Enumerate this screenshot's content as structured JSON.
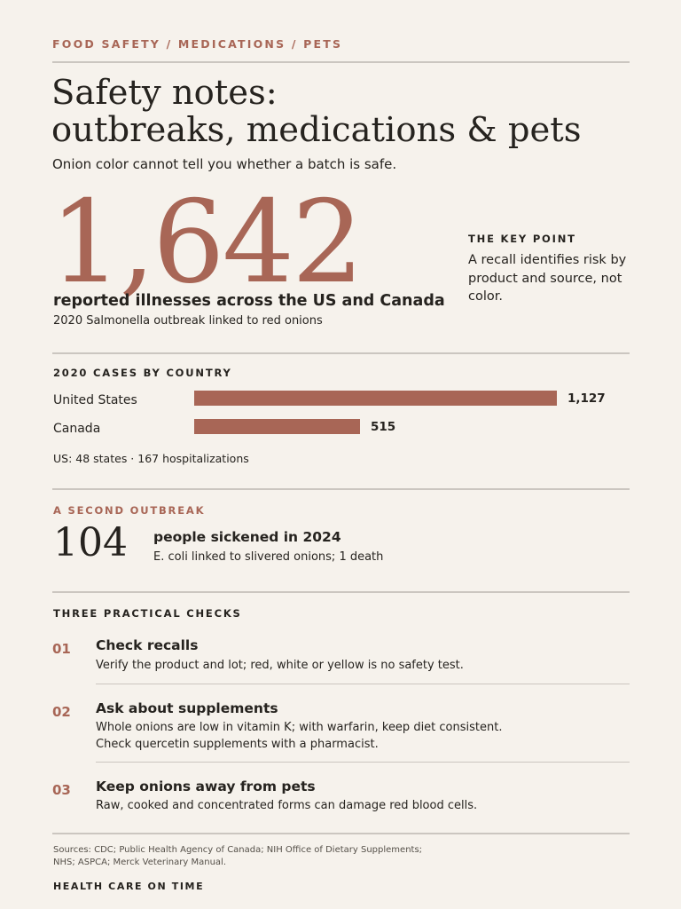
{
  "header": {
    "kicker": "FOOD SAFETY / MEDICATIONS / PETS",
    "title_line1": "Safety notes:",
    "title_line2": "outbreaks, medications & pets",
    "subtitle": "Onion color cannot tell you whether a batch is safe."
  },
  "hero": {
    "number": "1,642",
    "headline": "reported illnesses across the US and Canada",
    "subline": "2020 Salmonella outbreak linked to red onions"
  },
  "key_point": {
    "label": "THE KEY POINT",
    "text": "A recall identifies risk by product and source, not color."
  },
  "cases": {
    "label": "2020 CASES BY COUNTRY",
    "note": "US: 48 states · 167 hospitalizations"
  },
  "chart_data": {
    "type": "bar",
    "title": "2020 CASES BY COUNTRY",
    "categories": [
      "United States",
      "Canada"
    ],
    "values": [
      1127,
      515
    ],
    "value_labels": [
      "1,127",
      "515"
    ],
    "color": "#a86656",
    "xlim": [
      0,
      1127
    ]
  },
  "second_outbreak": {
    "label": "A SECOND OUTBREAK",
    "number": "104",
    "headline": "people sickened in 2024",
    "subline": "E. coli linked to slivered onions; 1 death"
  },
  "checks": {
    "label": "THREE PRACTICAL CHECKS",
    "items": [
      {
        "num": "01",
        "title": "Check recalls",
        "text": "Verify the product and lot; red, white or yellow is no safety test."
      },
      {
        "num": "02",
        "title": "Ask about supplements",
        "text": "Whole onions are low in vitamin K; with warfarin, keep diet consistent. Check quercetin supplements with a pharmacist."
      },
      {
        "num": "03",
        "title": "Keep onions away from pets",
        "text": "Raw, cooked and concentrated forms can damage red blood cells."
      }
    ]
  },
  "footer": {
    "sources": "Sources: CDC; Public Health Agency of Canada; NIH Office of Dietary Supplements; NHS; ASPCA; Merck Veterinary Manual.",
    "brand": "HEALTH CARE ON TIME"
  },
  "colors": {
    "accent": "#a86656",
    "background": "#f6f2ec",
    "text": "#26231f",
    "rule": "#cbc6c0"
  }
}
